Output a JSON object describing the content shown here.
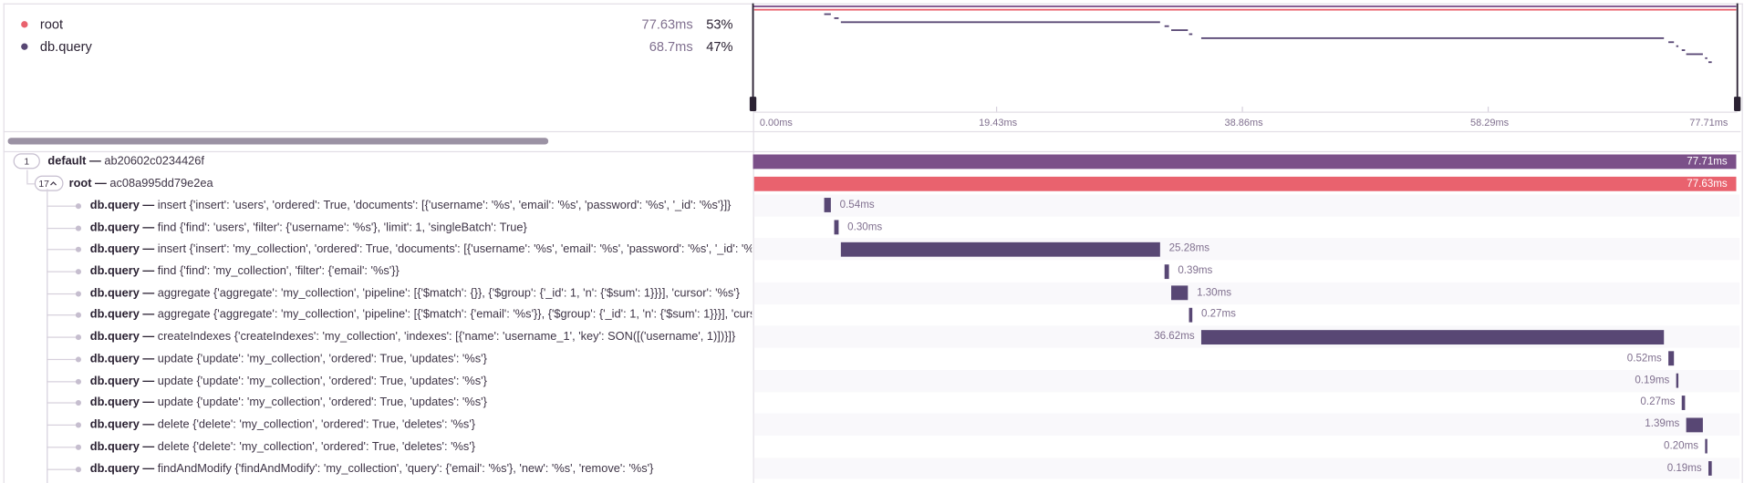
{
  "legend": [
    {
      "name": "root",
      "duration": "77.63ms",
      "percent": "53%"
    },
    {
      "name": "db.query",
      "duration": "68.7ms",
      "percent": "47%"
    }
  ],
  "axis_ticks": [
    "0.00ms",
    "19.43ms",
    "38.86ms",
    "58.29ms",
    "77.71ms"
  ],
  "spans": [
    {
      "count": "1",
      "operation": "default —",
      "description": "ab20602c0234426f",
      "duration": "77.71ms"
    },
    {
      "count": "17",
      "operation": "root —",
      "description": "ac08a995dd79e2ea",
      "duration": "77.63ms"
    },
    {
      "operation": "db.query —",
      "description": "insert {'insert': 'users', 'ordered': True, 'documents': [{'username': '%s', 'email': '%s', 'password': '%s', '_id': '%s'}]}",
      "duration": "0.54ms"
    },
    {
      "operation": "db.query —",
      "description": "find {'find': 'users', 'filter': {'username': '%s'}, 'limit': 1, 'singleBatch': True}",
      "duration": "0.30ms"
    },
    {
      "operation": "db.query —",
      "description": "insert {'insert': 'my_collection', 'ordered': True, 'documents': [{'username': '%s', 'email': '%s', 'password': '%s', '_id': '%s'}, {'u",
      "duration": "25.28ms"
    },
    {
      "operation": "db.query —",
      "description": "find {'find': 'my_collection', 'filter': {'email': '%s'}}",
      "duration": "0.39ms"
    },
    {
      "operation": "db.query —",
      "description": "aggregate {'aggregate': 'my_collection', 'pipeline': [{'$match': {}}, {'$group': {'_id': 1, 'n': {'$sum': 1}}}], 'cursor': '%s'}",
      "duration": "1.30ms"
    },
    {
      "operation": "db.query —",
      "description": "aggregate {'aggregate': 'my_collection', 'pipeline': [{'$match': {'email': '%s'}}, {'$group': {'_id': 1, 'n': {'$sum': 1}}}], 'cursor': '",
      "duration": "0.27ms"
    },
    {
      "operation": "db.query —",
      "description": "createIndexes {'createIndexes': 'my_collection', 'indexes': [{'name': 'username_1', 'key': SON([('username', 1)])}]}",
      "duration": "36.62ms"
    },
    {
      "operation": "db.query —",
      "description": "update {'update': 'my_collection', 'ordered': True, 'updates': '%s'}",
      "duration": "0.52ms"
    },
    {
      "operation": "db.query —",
      "description": "update {'update': 'my_collection', 'ordered': True, 'updates': '%s'}",
      "duration": "0.19ms"
    },
    {
      "operation": "db.query —",
      "description": "update {'update': 'my_collection', 'ordered': True, 'updates': '%s'}",
      "duration": "0.27ms"
    },
    {
      "operation": "db.query —",
      "description": "delete {'delete': 'my_collection', 'ordered': True, 'deletes': '%s'}",
      "duration": "1.39ms"
    },
    {
      "operation": "db.query —",
      "description": "delete {'delete': 'my_collection', 'ordered': True, 'deletes': '%s'}",
      "duration": "0.20ms"
    },
    {
      "operation": "db.query —",
      "description": "findAndModify {'findAndModify': 'my_collection', 'query': {'email': '%s'}, 'new': '%s', 'remove': '%s'}",
      "duration": "0.19ms"
    }
  ]
}
